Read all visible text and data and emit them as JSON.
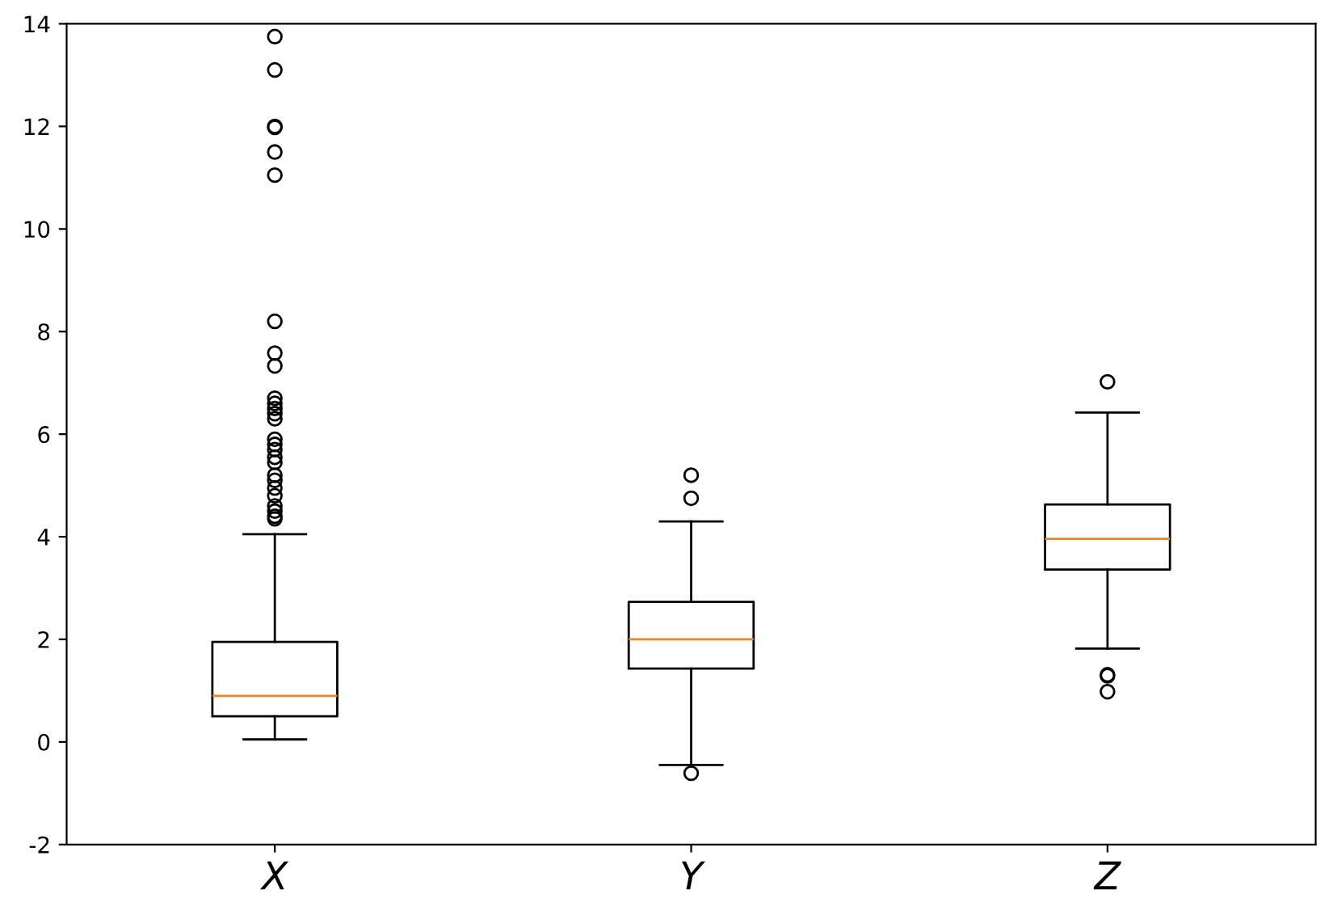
{
  "chart_data": {
    "type": "box",
    "categories": [
      "X",
      "Y",
      "Z"
    ],
    "boxes": [
      {
        "low": 0.05,
        "q1": 0.5,
        "median": 0.9,
        "q3": 1.95,
        "high": 4.05,
        "outliers": [
          13.75,
          13.1,
          12.0,
          11.98,
          11.5,
          11.05,
          8.2,
          7.58,
          7.33,
          6.7,
          6.6,
          6.5,
          6.4,
          6.3,
          5.9,
          5.8,
          5.7,
          5.55,
          5.45,
          5.2,
          5.1,
          4.95,
          4.8,
          4.6,
          4.5,
          4.4,
          4.35
        ]
      },
      {
        "low": -0.45,
        "q1": 1.43,
        "median": 2.0,
        "q3": 2.73,
        "high": 4.3,
        "outliers": [
          5.2,
          4.75,
          -0.61
        ]
      },
      {
        "low": 1.82,
        "q1": 3.36,
        "median": 3.96,
        "q3": 4.63,
        "high": 6.42,
        "outliers": [
          7.02,
          1.31,
          1.29,
          0.98
        ]
      }
    ],
    "ylim": [
      -2,
      14
    ],
    "yticks": [
      -2,
      0,
      2,
      4,
      6,
      8,
      10,
      12,
      14
    ],
    "grid": false
  }
}
